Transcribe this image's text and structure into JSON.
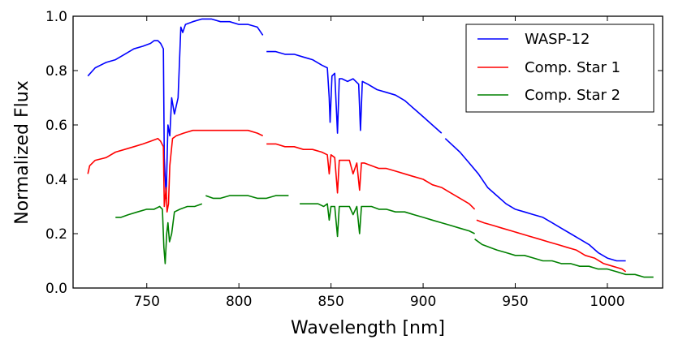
{
  "chart_data": {
    "type": "line",
    "title": "",
    "xlabel": "Wavelength [nm]",
    "ylabel": "Normalized Flux",
    "xlim": [
      710,
      1030
    ],
    "ylim": [
      0.0,
      1.0
    ],
    "xticks": [
      750,
      800,
      850,
      900,
      950,
      1000
    ],
    "yticks": [
      0.0,
      0.2,
      0.4,
      0.6,
      0.8,
      1.0
    ],
    "xtick_labels": [
      "750",
      "800",
      "850",
      "900",
      "950",
      "1000"
    ],
    "ytick_labels": [
      "0.0",
      "0.2",
      "0.4",
      "0.6",
      "0.8",
      "1.0"
    ],
    "grid": false,
    "legend_position": "top-right",
    "series": [
      {
        "name": "WASP-12",
        "color": "#0000ff",
        "segments": [
          {
            "x": [
              718,
              722,
              728,
              733,
              738,
              743,
              748,
              752,
              754,
              756,
              757.5,
              759,
              759.5,
              760.5,
              761.5,
              762.5,
              763.5,
              765,
              767,
              768.5,
              769.5,
              771,
              775,
              780,
              785,
              790,
              795,
              800,
              805,
              810,
              813
            ],
            "y": [
              0.78,
              0.81,
              0.83,
              0.84,
              0.86,
              0.88,
              0.89,
              0.9,
              0.91,
              0.91,
              0.9,
              0.88,
              0.48,
              0.33,
              0.6,
              0.56,
              0.7,
              0.64,
              0.7,
              0.96,
              0.94,
              0.97,
              0.98,
              0.99,
              0.99,
              0.98,
              0.98,
              0.97,
              0.97,
              0.96,
              0.93
            ]
          },
          {
            "x": [
              815,
              820,
              825,
              830,
              835,
              840,
              845,
              848,
              849,
              849.5,
              850.5,
              852,
              853.5,
              854.5,
              856,
              859,
              862,
              865,
              866,
              867,
              870,
              875,
              880,
              885,
              890,
              895,
              900,
              905,
              910
            ],
            "y": [
              0.87,
              0.87,
              0.86,
              0.86,
              0.85,
              0.84,
              0.82,
              0.81,
              0.7,
              0.61,
              0.78,
              0.79,
              0.57,
              0.77,
              0.77,
              0.76,
              0.77,
              0.75,
              0.58,
              0.76,
              0.75,
              0.73,
              0.72,
              0.71,
              0.69,
              0.66,
              0.63,
              0.6,
              0.57
            ]
          },
          {
            "x": [
              912,
              920,
              925,
              930,
              935,
              940,
              945,
              950,
              955,
              960,
              965,
              970,
              975,
              980,
              985,
              990,
              995,
              1000,
              1005,
              1010
            ],
            "y": [
              0.55,
              0.5,
              0.46,
              0.42,
              0.37,
              0.34,
              0.31,
              0.29,
              0.28,
              0.27,
              0.26,
              0.24,
              0.22,
              0.2,
              0.18,
              0.16,
              0.13,
              0.11,
              0.1,
              0.1
            ]
          }
        ]
      },
      {
        "name": "Comp. Star 1",
        "color": "#ff0000",
        "segments": [
          {
            "x": [
              718,
              719,
              722,
              728,
              733,
              738,
              743,
              748,
              752,
              756,
              757.5,
              759,
              759.5,
              760.5,
              761,
              761.8,
              762.5,
              764,
              766,
              770,
              775,
              780,
              785,
              790,
              795,
              800,
              805,
              810,
              813
            ],
            "y": [
              0.42,
              0.45,
              0.47,
              0.48,
              0.5,
              0.51,
              0.52,
              0.53,
              0.54,
              0.55,
              0.54,
              0.52,
              0.3,
              0.37,
              0.28,
              0.31,
              0.45,
              0.55,
              0.56,
              0.57,
              0.58,
              0.58,
              0.58,
              0.58,
              0.58,
              0.58,
              0.58,
              0.57,
              0.56
            ]
          },
          {
            "x": [
              815,
              820,
              825,
              830,
              835,
              840,
              845,
              848,
              849,
              850,
              852,
              853.5,
              854.5,
              856,
              860,
              862,
              864,
              865.5,
              866.5,
              868,
              872,
              876,
              880,
              885,
              890,
              895,
              900,
              905,
              910,
              915,
              920,
              925,
              928
            ],
            "y": [
              0.53,
              0.53,
              0.52,
              0.52,
              0.51,
              0.51,
              0.5,
              0.49,
              0.42,
              0.49,
              0.48,
              0.35,
              0.47,
              0.47,
              0.47,
              0.42,
              0.46,
              0.36,
              0.46,
              0.46,
              0.45,
              0.44,
              0.44,
              0.43,
              0.42,
              0.41,
              0.4,
              0.38,
              0.37,
              0.35,
              0.33,
              0.31,
              0.29
            ]
          },
          {
            "x": [
              929,
              933,
              938,
              943,
              948,
              953,
              958,
              963,
              968,
              973,
              978,
              983,
              988,
              993,
              998,
              1003,
              1008,
              1010
            ],
            "y": [
              0.25,
              0.24,
              0.23,
              0.22,
              0.21,
              0.2,
              0.19,
              0.18,
              0.17,
              0.16,
              0.15,
              0.14,
              0.12,
              0.11,
              0.09,
              0.08,
              0.07,
              0.06
            ]
          }
        ]
      },
      {
        "name": "Comp. Star 2",
        "color": "#008000",
        "segments": [
          {
            "x": [
              733,
              736,
              740,
              745,
              750,
              754,
              757,
              758.5,
              759.3,
              760,
              760.8,
              761.5,
              762.3,
              763.5,
              765,
              768,
              772,
              776,
              780
            ],
            "y": [
              0.26,
              0.26,
              0.27,
              0.28,
              0.29,
              0.29,
              0.3,
              0.29,
              0.15,
              0.09,
              0.2,
              0.24,
              0.17,
              0.2,
              0.28,
              0.29,
              0.3,
              0.3,
              0.31
            ]
          },
          {
            "x": [
              782,
              786,
              790,
              795,
              800,
              805,
              810,
              815,
              820,
              827
            ],
            "y": [
              0.34,
              0.33,
              0.33,
              0.34,
              0.34,
              0.34,
              0.33,
              0.33,
              0.34,
              0.34
            ]
          },
          {
            "x": [
              833,
              838,
              843,
              846,
              848,
              849,
              850,
              852,
              853.5,
              854.5,
              856,
              860,
              862,
              864,
              865.5,
              866.5,
              868,
              872,
              876,
              880,
              885,
              890,
              895,
              900,
              905,
              910,
              915,
              920,
              925,
              928
            ],
            "y": [
              0.31,
              0.31,
              0.31,
              0.3,
              0.31,
              0.25,
              0.3,
              0.3,
              0.19,
              0.3,
              0.3,
              0.3,
              0.27,
              0.3,
              0.2,
              0.3,
              0.3,
              0.3,
              0.29,
              0.29,
              0.28,
              0.28,
              0.27,
              0.26,
              0.25,
              0.24,
              0.23,
              0.22,
              0.21,
              0.2
            ]
          },
          {
            "x": [
              928,
              932,
              936,
              940,
              945,
              950,
              955,
              960,
              965,
              970,
              975,
              980,
              985,
              990,
              995,
              1000,
              1005,
              1010,
              1015,
              1020,
              1025
            ],
            "y": [
              0.18,
              0.16,
              0.15,
              0.14,
              0.13,
              0.12,
              0.12,
              0.11,
              0.1,
              0.1,
              0.09,
              0.09,
              0.08,
              0.08,
              0.07,
              0.07,
              0.06,
              0.05,
              0.05,
              0.04,
              0.04
            ]
          }
        ]
      }
    ]
  }
}
